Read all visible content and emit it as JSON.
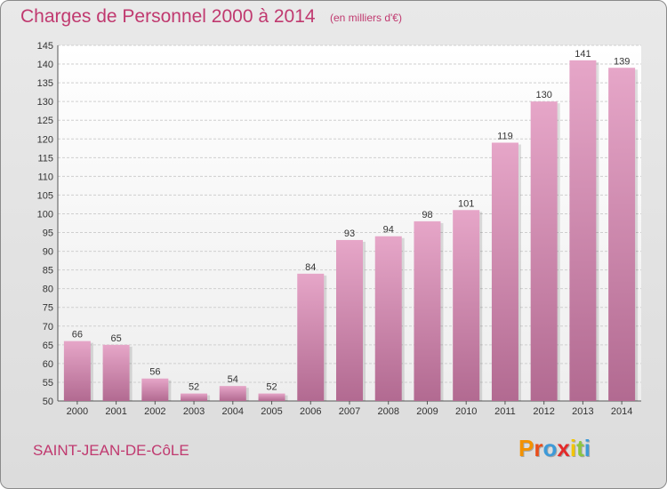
{
  "header": {
    "title": "Charges de Personnel 2000 à 2014",
    "subtitle": "(en milliers d'€)"
  },
  "footer": {
    "commune": "SAINT-JEAN-DE-CôLE",
    "logo_letters": [
      "P",
      "r",
      "o",
      "x",
      "i",
      "t",
      "i"
    ],
    "logo_colors": [
      "#f39200",
      "#e94e1b",
      "#3d9ad8",
      "#e42a2a",
      "#f2c500",
      "#8cc63f",
      "#3d9ad8"
    ]
  },
  "chart_data": {
    "type": "bar",
    "categories": [
      "2000",
      "2001",
      "2002",
      "2003",
      "2004",
      "2005",
      "2006",
      "2007",
      "2008",
      "2009",
      "2010",
      "2011",
      "2012",
      "2013",
      "2014"
    ],
    "values": [
      66,
      65,
      56,
      52,
      54,
      52,
      84,
      93,
      94,
      98,
      101,
      119,
      130,
      141,
      139
    ],
    "ylim": [
      50,
      145
    ],
    "yticks": [
      50,
      55,
      60,
      65,
      70,
      75,
      80,
      85,
      90,
      95,
      100,
      105,
      110,
      115,
      120,
      125,
      130,
      135,
      140,
      145
    ],
    "grid": true,
    "bar_color": "#d98ab4",
    "title": "Charges de Personnel 2000 à 2014",
    "xlabel": "",
    "ylabel": ""
  }
}
